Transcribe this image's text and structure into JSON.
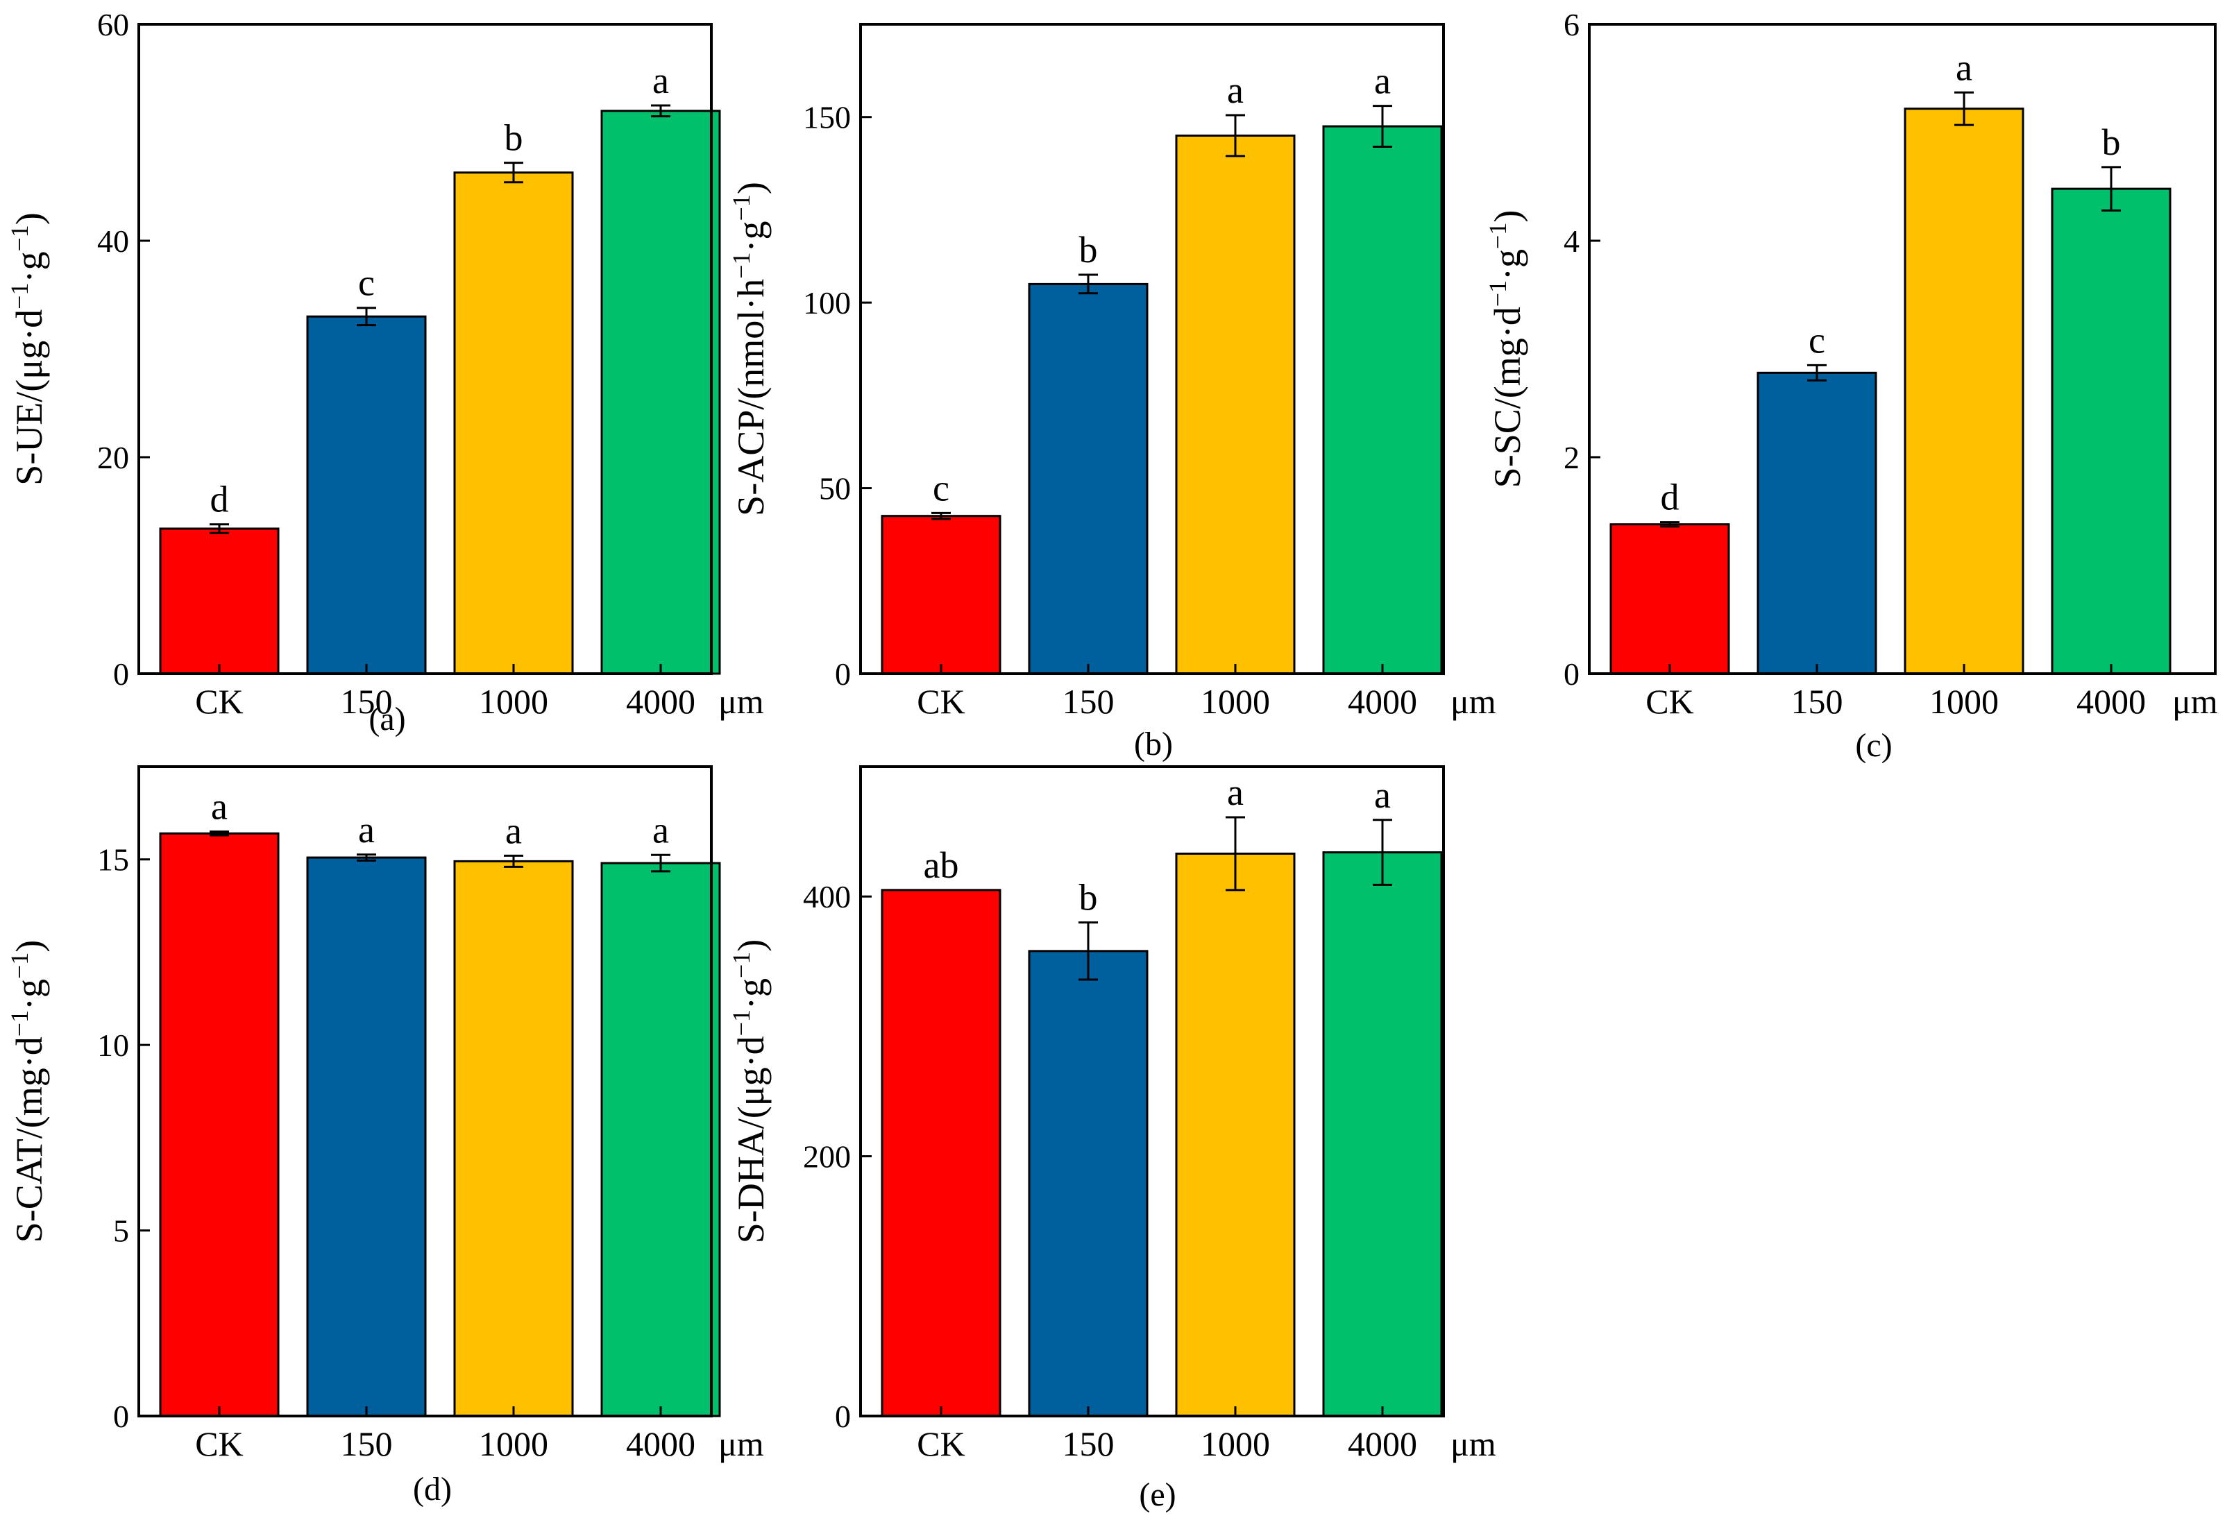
{
  "figure": {
    "unit": "μm",
    "colors": [
      "#ff0000",
      "#00609e",
      "#ffc000",
      "#00c06b"
    ]
  },
  "chart_data": [
    {
      "type": "bar",
      "panel": "(a)",
      "ylabel_main": "S-UE/(μg·d",
      "ylabel_mid": "·g",
      "ylabel_end": ")",
      "sup": "−1",
      "ylim": [
        0,
        60
      ],
      "yticks": [
        0,
        20,
        40,
        60
      ],
      "categories": [
        "CK",
        "150",
        "1000",
        "4000"
      ],
      "values": [
        13.4,
        33.0,
        46.3,
        52.0
      ],
      "errors": [
        0.4,
        0.8,
        0.9,
        0.5
      ],
      "letters": [
        "d",
        "c",
        "b",
        "a"
      ]
    },
    {
      "type": "bar",
      "panel": "(b)",
      "ylabel_main": "S-ACP/(nmol·h",
      "ylabel_mid": "·g",
      "ylabel_end": ")",
      "sup": "−1",
      "ylim": [
        0,
        175
      ],
      "yticks": [
        0,
        50,
        100,
        150
      ],
      "categories": [
        "CK",
        "150",
        "1000",
        "4000"
      ],
      "values": [
        42.5,
        105.0,
        145.0,
        147.5
      ],
      "errors": [
        0.8,
        2.5,
        5.5,
        5.5
      ],
      "letters": [
        "c",
        "b",
        "a",
        "a"
      ]
    },
    {
      "type": "bar",
      "panel": "(c)",
      "ylabel_main": "S-SC/(mg·d",
      "ylabel_mid": "·g",
      "ylabel_end": ")",
      "sup": "−1",
      "ylim": [
        0,
        6
      ],
      "yticks": [
        0,
        2,
        4,
        6
      ],
      "categories": [
        "CK",
        "150",
        "1000",
        "4000"
      ],
      "values": [
        1.38,
        2.78,
        5.22,
        4.48
      ],
      "errors": [
        0.02,
        0.07,
        0.15,
        0.2
      ],
      "letters": [
        "d",
        "c",
        "a",
        "b"
      ]
    },
    {
      "type": "bar",
      "panel": "(d)",
      "ylabel_main": "S-CAT/(mg·d",
      "ylabel_mid": "·g",
      "ylabel_end": ")",
      "sup": "−1",
      "ylim": [
        0,
        17.5
      ],
      "yticks": [
        0,
        5,
        10,
        15
      ],
      "categories": [
        "CK",
        "150",
        "1000",
        "4000"
      ],
      "values": [
        15.7,
        15.05,
        14.95,
        14.9
      ],
      "errors": [
        0.05,
        0.08,
        0.15,
        0.22
      ],
      "letters": [
        "a",
        "a",
        "a",
        "a"
      ]
    },
    {
      "type": "bar",
      "panel": "(e)",
      "ylabel_main": "S-DHA/(μg·d",
      "ylabel_mid": "·g",
      "ylabel_end": ")",
      "sup": "−1",
      "ylim": [
        0,
        500
      ],
      "yticks": [
        0,
        200,
        400
      ],
      "categories": [
        "CK",
        "150",
        "1000",
        "4000"
      ],
      "values": [
        405,
        358,
        433,
        434
      ],
      "errors": [
        0,
        22,
        28,
        25
      ],
      "letters": [
        "ab",
        "b",
        "a",
        "a"
      ]
    }
  ]
}
